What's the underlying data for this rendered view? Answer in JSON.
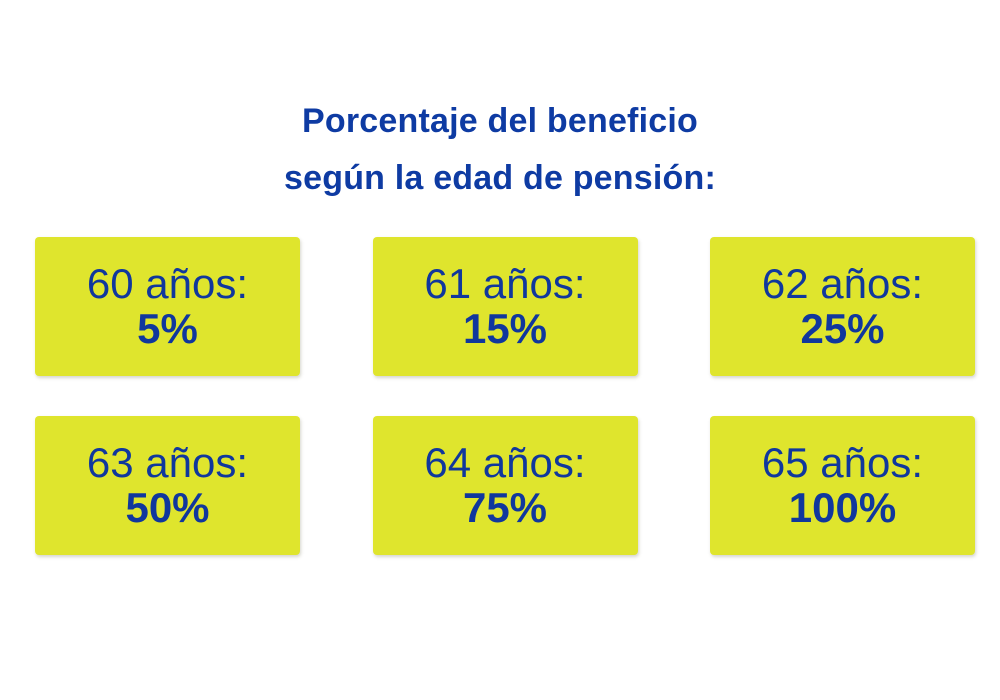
{
  "title": {
    "line1": "Porcentaje del beneficio",
    "line2": "según la edad de pensión:"
  },
  "cards": [
    {
      "age": "60 años:",
      "percent": "5%"
    },
    {
      "age": "61 años:",
      "percent": "15%"
    },
    {
      "age": "62 años:",
      "percent": "25%"
    },
    {
      "age": "63 años:",
      "percent": "50%"
    },
    {
      "age": "64 años:",
      "percent": "75%"
    },
    {
      "age": "65 años:",
      "percent": "100%"
    }
  ],
  "colors": {
    "title_blue": "#0e3ba3",
    "text_blue": "#10379d",
    "card_yellow": "#dfe52d",
    "background": "#ffffff"
  },
  "chart_data": {
    "type": "table",
    "title": "Porcentaje del beneficio según la edad de pensión:",
    "categories": [
      "60 años",
      "61 años",
      "62 años",
      "63 años",
      "64 años",
      "65 años"
    ],
    "values": [
      5,
      15,
      25,
      50,
      75,
      100
    ],
    "unit": "%",
    "xlabel": "Edad de pensión",
    "ylabel": "Porcentaje del beneficio",
    "layout": "3x2 grid of value cards, no axes, no legend"
  }
}
